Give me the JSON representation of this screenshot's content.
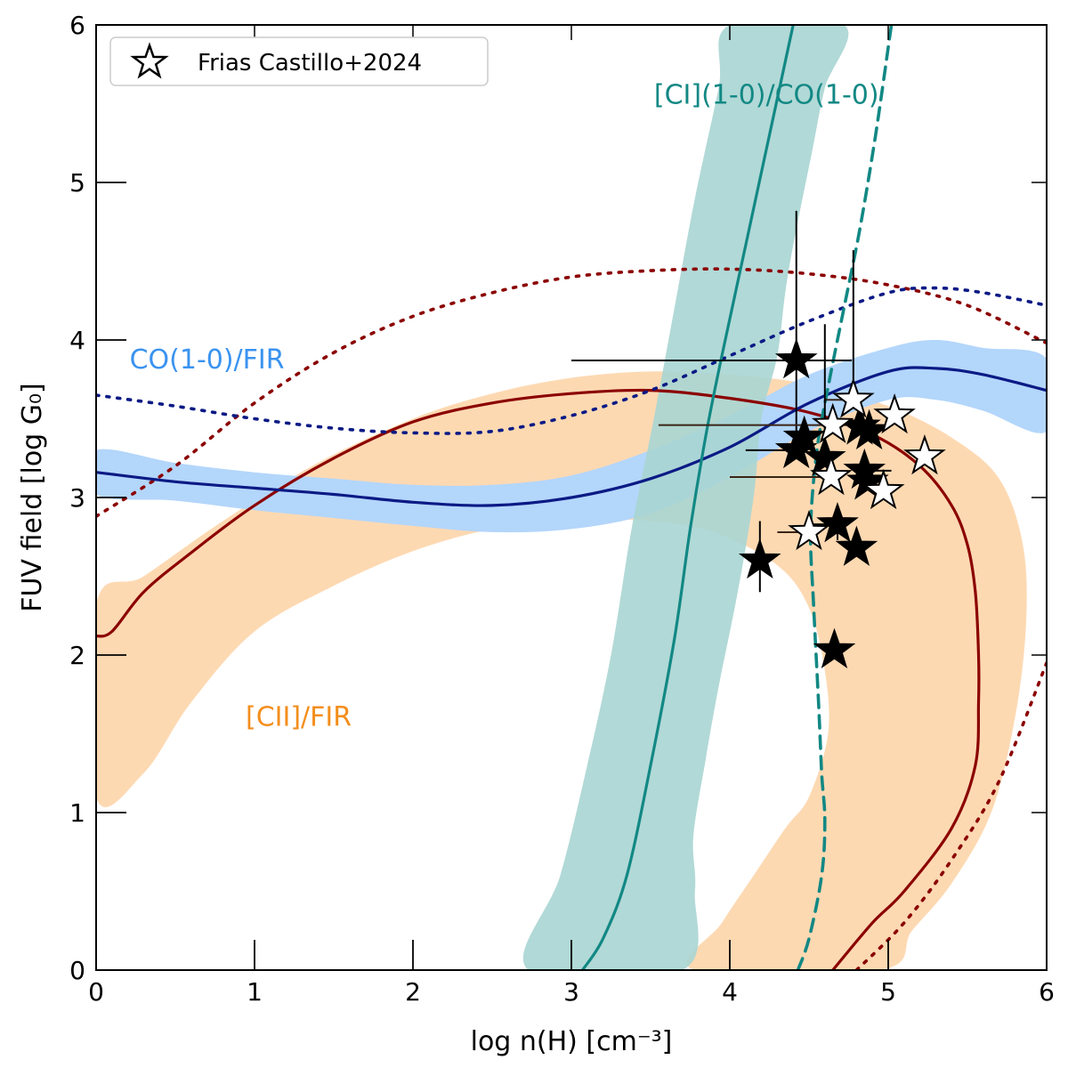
{
  "chart_data": {
    "type": "line",
    "xlabel": "log n(H) [cm⁻³]",
    "ylabel": "FUV field [log G₀]",
    "xlim": [
      0,
      6
    ],
    "ylim": [
      0,
      6
    ],
    "xticks": [
      0,
      1,
      2,
      3,
      4,
      5,
      6
    ],
    "yticks": [
      0,
      1,
      2,
      3,
      4,
      5,
      6
    ],
    "legend": {
      "location": "top-left",
      "label": "Frias Castillo+2024",
      "marker": "open-star"
    },
    "colors": {
      "cii_band": "#fdd9b2",
      "cii_line": "#8b0000",
      "co_band": "#b3d6fb",
      "co_line": "#0b1a85",
      "ci_band": "#a8d5d3",
      "ci_line": "#128884",
      "ci_label": "#128884",
      "co_label": "#3a93f0",
      "cii_label": "#f38e1c",
      "ci_band_overlap": "#b3c7b4"
    },
    "annotations": [
      {
        "text": "[CII]/FIR",
        "series": "cii",
        "x": 1.0,
        "y": 1.55
      },
      {
        "text": "CO(1-0)/FIR",
        "series": "co",
        "x": 0.2,
        "y": 3.82
      },
      {
        "text": "[CI](1-0)/CO(1-0)",
        "series": "ci",
        "x": 3.55,
        "y": 5.5
      }
    ],
    "series": [
      {
        "name": "[CII]/FIR model (solid)",
        "style": "solid",
        "color_key": "cii_line",
        "points": [
          [
            0,
            2.12
          ],
          [
            0.1,
            2.15
          ],
          [
            0.3,
            2.4
          ],
          [
            0.6,
            2.65
          ],
          [
            1.0,
            2.95
          ],
          [
            1.5,
            3.25
          ],
          [
            2.0,
            3.48
          ],
          [
            2.5,
            3.6
          ],
          [
            3.0,
            3.66
          ],
          [
            3.5,
            3.68
          ],
          [
            4.0,
            3.63
          ],
          [
            4.5,
            3.54
          ],
          [
            4.9,
            3.4
          ],
          [
            5.2,
            3.2
          ],
          [
            5.4,
            2.95
          ],
          [
            5.5,
            2.7
          ],
          [
            5.55,
            2.4
          ],
          [
            5.57,
            2.0
          ],
          [
            5.57,
            1.7
          ],
          [
            5.55,
            1.3
          ],
          [
            5.4,
            0.9
          ],
          [
            5.1,
            0.5
          ],
          [
            4.9,
            0.3
          ],
          [
            4.65,
            0
          ]
        ]
      },
      {
        "name": "[CII]/FIR model (dotted)",
        "style": "dotted",
        "color_key": "cii_line",
        "segments": [
          [
            [
              0,
              2.88
            ],
            [
              0.5,
              3.2
            ],
            [
              1.0,
              3.6
            ],
            [
              1.5,
              3.92
            ],
            [
              2.0,
              4.15
            ],
            [
              2.5,
              4.3
            ],
            [
              3.0,
              4.4
            ],
            [
              3.5,
              4.44
            ],
            [
              4.0,
              4.45
            ],
            [
              4.5,
              4.42
            ],
            [
              5.0,
              4.35
            ],
            [
              5.5,
              4.22
            ],
            [
              6.0,
              3.98
            ]
          ],
          [
            [
              4.8,
              0
            ],
            [
              5.1,
              0.3
            ],
            [
              5.4,
              0.7
            ],
            [
              5.7,
              1.2
            ],
            [
              6.0,
              1.95
            ]
          ]
        ]
      },
      {
        "name": "CO(1-0)/FIR model (solid)",
        "style": "solid",
        "color_key": "co_line",
        "points": [
          [
            0,
            3.16
          ],
          [
            0.5,
            3.1
          ],
          [
            1.0,
            3.06
          ],
          [
            1.5,
            3.02
          ],
          [
            2.0,
            2.97
          ],
          [
            2.5,
            2.95
          ],
          [
            3.0,
            3.0
          ],
          [
            3.5,
            3.12
          ],
          [
            4.0,
            3.32
          ],
          [
            4.5,
            3.6
          ],
          [
            5.0,
            3.8
          ],
          [
            5.3,
            3.82
          ],
          [
            5.6,
            3.78
          ],
          [
            6.0,
            3.68
          ]
        ]
      },
      {
        "name": "CO(1-0)/FIR model (dotted)",
        "style": "dotted",
        "color_key": "co_line",
        "points": [
          [
            0,
            3.65
          ],
          [
            0.5,
            3.58
          ],
          [
            1.0,
            3.5
          ],
          [
            1.5,
            3.44
          ],
          [
            2.0,
            3.41
          ],
          [
            2.5,
            3.42
          ],
          [
            3.0,
            3.52
          ],
          [
            3.5,
            3.68
          ],
          [
            4.0,
            3.9
          ],
          [
            4.5,
            4.12
          ],
          [
            5.0,
            4.3
          ],
          [
            5.3,
            4.33
          ],
          [
            5.6,
            4.3
          ],
          [
            6.0,
            4.22
          ]
        ]
      },
      {
        "name": "[CI](1-0)/CO(1-0) model (solid)",
        "style": "solid",
        "color_key": "ci_line",
        "points": [
          [
            3.07,
            0
          ],
          [
            3.2,
            0.2
          ],
          [
            3.35,
            0.6
          ],
          [
            3.5,
            1.3
          ],
          [
            3.65,
            2.1
          ],
          [
            3.75,
            2.8
          ],
          [
            3.85,
            3.4
          ],
          [
            3.95,
            3.9
          ],
          [
            4.1,
            4.6
          ],
          [
            4.25,
            5.3
          ],
          [
            4.4,
            6.0
          ]
        ]
      },
      {
        "name": "[CI](1-0)/CO(1-0) model (dashed)",
        "style": "dashed",
        "color_key": "ci_line",
        "points": [
          [
            4.43,
            0
          ],
          [
            4.5,
            0.2
          ],
          [
            4.58,
            0.6
          ],
          [
            4.6,
            0.95
          ],
          [
            4.58,
            1.25
          ],
          [
            4.56,
            1.7
          ],
          [
            4.53,
            2.3
          ],
          [
            4.51,
            2.8
          ],
          [
            4.55,
            3.3
          ],
          [
            4.62,
            3.7
          ],
          [
            4.72,
            4.2
          ],
          [
            4.82,
            4.7
          ],
          [
            4.92,
            5.3
          ],
          [
            5.02,
            6.0
          ]
        ]
      }
    ],
    "bands": [
      {
        "name": "[CII]/FIR uncertainty band",
        "color_key": "cii_band",
        "points": [
          [
            0,
            2.32
          ],
          [
            0.3,
            2.5
          ],
          [
            0.8,
            2.85
          ],
          [
            1.4,
            3.22
          ],
          [
            2.0,
            3.5
          ],
          [
            2.5,
            3.66
          ],
          [
            3.0,
            3.76
          ],
          [
            3.5,
            3.8
          ],
          [
            4.0,
            3.78
          ],
          [
            4.5,
            3.72
          ],
          [
            5.0,
            3.58
          ],
          [
            5.4,
            3.38
          ],
          [
            5.7,
            3.12
          ],
          [
            5.85,
            2.7
          ],
          [
            5.87,
            2.2
          ],
          [
            5.8,
            1.6
          ],
          [
            5.65,
            1.0
          ],
          [
            5.4,
            0.55
          ],
          [
            5.15,
            0.25
          ],
          [
            4.95,
            0
          ],
          [
            3.78,
            0
          ],
          [
            3.95,
            0.3
          ],
          [
            4.15,
            0.6
          ],
          [
            4.35,
            0.9
          ],
          [
            4.5,
            1.1
          ],
          [
            4.62,
            1.5
          ],
          [
            4.6,
            1.9
          ],
          [
            4.5,
            2.3
          ],
          [
            4.3,
            2.57
          ],
          [
            3.9,
            2.78
          ],
          [
            3.5,
            2.85
          ],
          [
            3.0,
            2.86
          ],
          [
            2.5,
            2.8
          ],
          [
            2.0,
            2.66
          ],
          [
            1.5,
            2.44
          ],
          [
            1.0,
            2.15
          ],
          [
            0.6,
            1.7
          ],
          [
            0.3,
            1.25
          ],
          [
            0,
            1.1
          ]
        ]
      },
      {
        "name": "CO(1-0)/FIR uncertainty band",
        "color_key": "co_band",
        "points": [
          [
            0,
            3.3
          ],
          [
            0.5,
            3.22
          ],
          [
            1.0,
            3.16
          ],
          [
            1.5,
            3.12
          ],
          [
            2.0,
            3.08
          ],
          [
            2.5,
            3.08
          ],
          [
            3.0,
            3.14
          ],
          [
            3.5,
            3.3
          ],
          [
            4.0,
            3.52
          ],
          [
            4.5,
            3.78
          ],
          [
            5.0,
            3.95
          ],
          [
            5.3,
            4.0
          ],
          [
            5.6,
            3.95
          ],
          [
            6.0,
            3.88
          ],
          [
            6.0,
            3.42
          ],
          [
            5.6,
            3.55
          ],
          [
            5.3,
            3.62
          ],
          [
            5.0,
            3.62
          ],
          [
            4.5,
            3.42
          ],
          [
            4.0,
            3.13
          ],
          [
            3.5,
            2.9
          ],
          [
            3.0,
            2.8
          ],
          [
            2.5,
            2.78
          ],
          [
            2.0,
            2.82
          ],
          [
            1.5,
            2.87
          ],
          [
            1.0,
            2.92
          ],
          [
            0.5,
            2.98
          ],
          [
            0,
            3.02
          ]
        ]
      },
      {
        "name": "[CI](1-0)/CO(1-0) uncertainty band",
        "color_key": "ci_band",
        "points": [
          [
            2.73,
            0
          ],
          [
            2.93,
            0.6
          ],
          [
            3.1,
            1.3
          ],
          [
            3.25,
            2.0
          ],
          [
            3.38,
            2.8
          ],
          [
            3.52,
            3.5
          ],
          [
            3.65,
            4.2
          ],
          [
            3.78,
            4.9
          ],
          [
            3.93,
            5.6
          ],
          [
            4.0,
            6.0
          ],
          [
            4.72,
            6.0
          ],
          [
            4.6,
            5.6
          ],
          [
            4.52,
            5.2
          ],
          [
            4.4,
            4.6
          ],
          [
            4.35,
            4.3
          ],
          [
            4.3,
            3.9
          ],
          [
            4.2,
            3.5
          ],
          [
            4.15,
            3.0
          ],
          [
            4.05,
            2.4
          ],
          [
            3.93,
            1.8
          ],
          [
            3.85,
            1.35
          ],
          [
            3.77,
            0.85
          ],
          [
            3.78,
            0.5
          ],
          [
            3.7,
            0
          ]
        ]
      }
    ],
    "points": [
      {
        "x": 4.42,
        "y": 3.87,
        "fill": "filled",
        "xerr": [
          1.42,
          0.35
        ],
        "yerr": [
          0.55,
          0.95
        ]
      },
      {
        "x": 4.78,
        "y": 3.62,
        "fill": "open",
        "xerr": [
          0.18,
          0.0
        ],
        "yerr": [
          0.0,
          0.95
        ]
      },
      {
        "x": 4.65,
        "y": 3.46,
        "fill": "open",
        "xerr": [
          1.1,
          0.38
        ],
        "yerr": [
          0.0,
          0.0
        ]
      },
      {
        "x": 5.04,
        "y": 3.52,
        "fill": "open"
      },
      {
        "x": 4.47,
        "y": 3.38,
        "fill": "filled"
      },
      {
        "x": 4.42,
        "y": 3.3,
        "fill": "filled",
        "xerr": [
          0.32,
          0.0
        ],
        "yerr": [
          0.0,
          0.0
        ]
      },
      {
        "x": 4.82,
        "y": 3.45,
        "fill": "filled",
        "yerr": [
          0.0,
          0.2
        ]
      },
      {
        "x": 4.88,
        "y": 3.42,
        "fill": "filled"
      },
      {
        "x": 4.6,
        "y": 3.25,
        "fill": "filled",
        "yerr": [
          0.0,
          0.85
        ]
      },
      {
        "x": 5.23,
        "y": 3.26,
        "fill": "open"
      },
      {
        "x": 4.64,
        "y": 3.13,
        "fill": "open",
        "xerr": [
          0.64,
          0.0
        ],
        "yerr": [
          0.0,
          0.0
        ]
      },
      {
        "x": 4.85,
        "y": 3.17,
        "fill": "filled",
        "xerr": [
          0.0,
          0.17
        ]
      },
      {
        "x": 4.87,
        "y": 3.1,
        "fill": "filled"
      },
      {
        "x": 4.97,
        "y": 3.04,
        "fill": "open"
      },
      {
        "x": 4.68,
        "y": 2.83,
        "fill": "filled",
        "xerr": [
          0.18,
          0.0
        ],
        "yerr": [
          0.1,
          0.0
        ]
      },
      {
        "x": 4.5,
        "y": 2.78,
        "fill": "open",
        "xerr": [
          0.2,
          0.0
        ]
      },
      {
        "x": 4.8,
        "y": 2.68,
        "fill": "filled"
      },
      {
        "x": 4.19,
        "y": 2.6,
        "fill": "filled",
        "yerr": [
          0.2,
          0.25
        ]
      },
      {
        "x": 4.66,
        "y": 2.03,
        "fill": "filled"
      }
    ]
  }
}
